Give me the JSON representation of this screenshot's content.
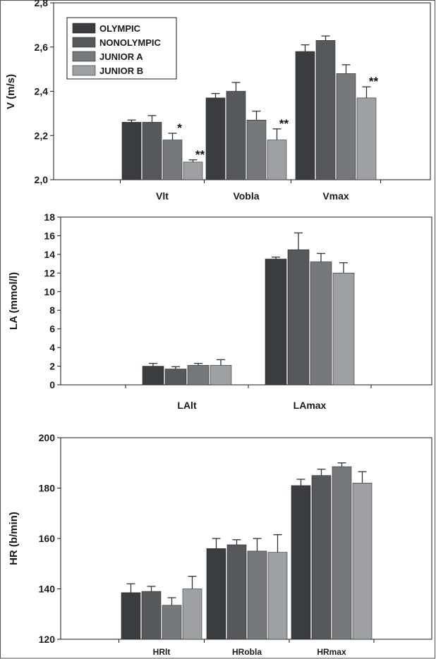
{
  "colors": {
    "series": [
      "#3a3d3f",
      "#56595b",
      "#76797b",
      "#9ea1a3"
    ],
    "axis": "#1a1a1a",
    "background": "#ffffff"
  },
  "chart_data": [
    {
      "type": "bar",
      "ylabel": "V (m/s)",
      "xlabel": "",
      "ylim": [
        2.0,
        2.8
      ],
      "yticks": [
        "2,0",
        "2,2",
        "2,4",
        "2,6",
        "2,8"
      ],
      "categories": [
        "Vlt",
        "Vobla",
        "Vmax"
      ],
      "legend": {
        "position": "top-left"
      },
      "series": [
        {
          "name": "OLYMPIC",
          "values": [
            2.26,
            2.37,
            2.58
          ],
          "errors": [
            0.01,
            0.02,
            0.03
          ]
        },
        {
          "name": "NONOLYMPIC",
          "values": [
            2.26,
            2.4,
            2.63
          ],
          "errors": [
            0.03,
            0.04,
            0.02
          ]
        },
        {
          "name": "JUNIOR A",
          "values": [
            2.18,
            2.27,
            2.48
          ],
          "errors": [
            0.03,
            0.04,
            0.04
          ]
        },
        {
          "name": "JUNIOR B",
          "values": [
            2.08,
            2.18,
            2.37
          ],
          "errors": [
            0.01,
            0.05,
            0.05
          ]
        }
      ],
      "annotations": [
        {
          "series": 2,
          "category": 0,
          "text": "*"
        },
        {
          "series": 3,
          "category": 0,
          "text": "**"
        },
        {
          "series": 3,
          "category": 1,
          "text": "**"
        },
        {
          "series": 3,
          "category": 2,
          "text": "**"
        }
      ]
    },
    {
      "type": "bar",
      "ylabel": "LA (mmol/l)",
      "xlabel": "",
      "ylim": [
        0,
        18
      ],
      "yticks": [
        "0",
        "2",
        "4",
        "6",
        "8",
        "10",
        "12",
        "14",
        "16",
        "18"
      ],
      "categories": [
        "LAlt",
        "LAmax"
      ],
      "series": [
        {
          "values": [
            2.0,
            13.5
          ],
          "errors": [
            0.3,
            0.2
          ]
        },
        {
          "values": [
            1.7,
            14.5
          ],
          "errors": [
            0.25,
            1.8
          ]
        },
        {
          "values": [
            2.1,
            13.2
          ],
          "errors": [
            0.2,
            0.9
          ]
        },
        {
          "values": [
            2.1,
            12.0
          ],
          "errors": [
            0.6,
            1.1
          ]
        }
      ]
    },
    {
      "type": "bar",
      "ylabel": "HR (b/min)",
      "xlabel": "",
      "ylim": [
        120,
        200
      ],
      "yticks": [
        "120",
        "140",
        "160",
        "180",
        "200"
      ],
      "categories": [
        "HRlt",
        "HRobla",
        "HRmax"
      ],
      "series": [
        {
          "values": [
            138.5,
            156,
            181
          ],
          "errors": [
            3.5,
            4,
            2.5
          ]
        },
        {
          "values": [
            139,
            157.5,
            185
          ],
          "errors": [
            2,
            2,
            2.5
          ]
        },
        {
          "values": [
            133.5,
            155,
            188.5
          ],
          "errors": [
            3,
            5,
            1.5
          ]
        },
        {
          "values": [
            140,
            154.5,
            182
          ],
          "errors": [
            5,
            7,
            4.5
          ]
        }
      ]
    }
  ]
}
